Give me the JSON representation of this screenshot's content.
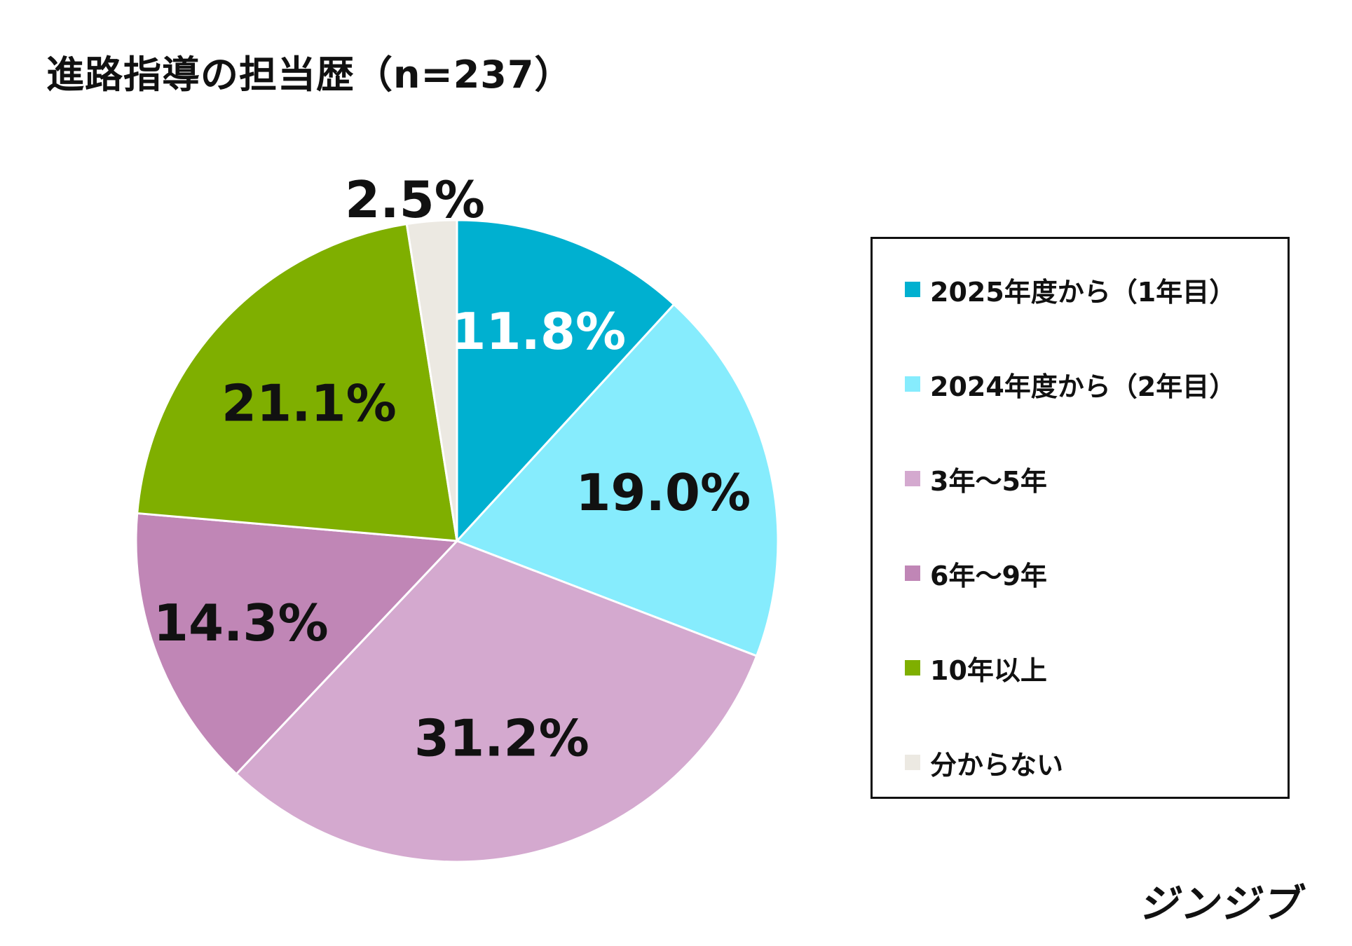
{
  "title": "進路指導の担当歴（n=237）",
  "brand": "ジンジブ",
  "chart_data": {
    "type": "pie",
    "title": "進路指導の担当歴（n=237）",
    "n": 237,
    "start": "top, clockwise",
    "legend": "right",
    "slices": [
      {
        "name": "2025年度から（1年目）",
        "value": 11.8,
        "label": "11.8%",
        "color": "#00b0d0",
        "label_color": "#ffffff"
      },
      {
        "name": "2024年度から（2年目）",
        "value": 19.0,
        "label": "19.0%",
        "color": "#86ecfd",
        "label_color": "#111111"
      },
      {
        "name": "3年～5年",
        "value": 31.2,
        "label": "31.2%",
        "color": "#d4a9cf",
        "label_color": "#111111"
      },
      {
        "name": "6年～9年",
        "value": 14.3,
        "label": "14.3%",
        "color": "#c086b6",
        "label_color": "#111111"
      },
      {
        "name": "10年以上",
        "value": 21.1,
        "label": "21.1%",
        "color": "#7faf00",
        "label_color": "#111111"
      },
      {
        "name": "分からない",
        "value": 2.5,
        "label": "2.5%",
        "color": "#ece9e2",
        "label_color": "#111111"
      }
    ]
  }
}
